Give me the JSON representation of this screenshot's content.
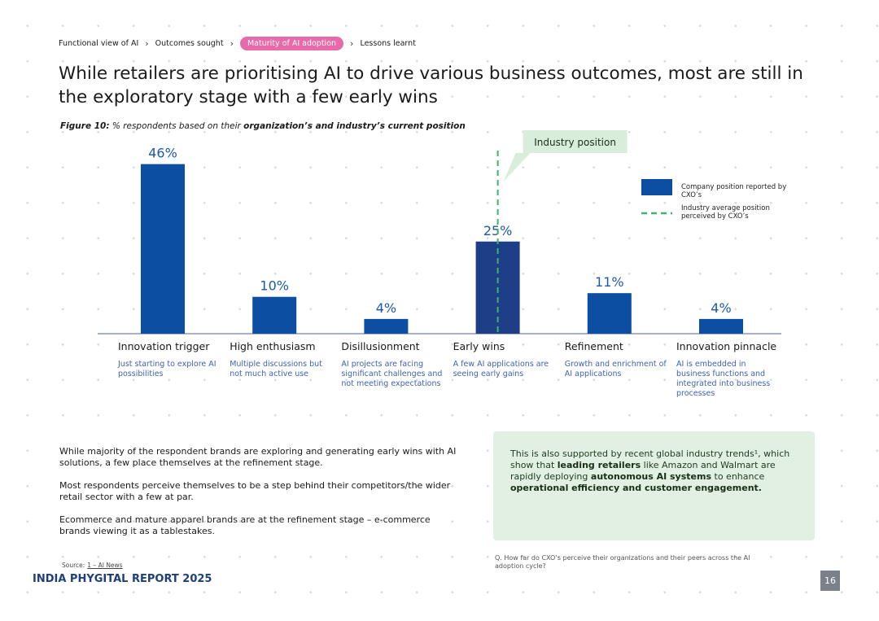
{
  "breadcrumb": [
    "Functional view of AI",
    "Outcomes sought",
    "Maturity of AI adoption",
    "Lessons learnt"
  ],
  "breadcrumb_active": 2,
  "heading": "While retailers are prioritising AI to drive various business outcomes, most are still in the exploratory stage with a few early wins",
  "chart_data": {
    "type": "bar",
    "figure_label": "Figure 10:",
    "title_parts": [
      "% respondents based on their",
      "organization’s and industry’s current position"
    ],
    "categories": [
      "Innovation trigger",
      "High enthusiasm",
      "Disillusionment",
      "Early wins",
      "Refinement",
      "Innovation pinnacle"
    ],
    "descriptions": [
      "Just starting to explore AI possibilities",
      "Multiple discussions but not much active use",
      "AI projects are facing significant challenges and not meeting expectations",
      "A few AI applications are seeing early gains",
      "Growth and enrichment of AI applications",
      "AI is embedded in business functions and integrated into business processes"
    ],
    "values": [
      46,
      10,
      4,
      25,
      11,
      4
    ],
    "value_labels": [
      "46%",
      "10%",
      "4%",
      "25%",
      "11%",
      "4%"
    ],
    "colors": [
      "#0b4ea2",
      "#0b4ea2",
      "#0b4ea2",
      "#1e3f87",
      "#0b4ea2",
      "#0b4ea2"
    ],
    "industry_label": "Industry position",
    "industry_category": "Early wins",
    "industry_color": "#3db56b",
    "legend": [
      "Company position reported by CXO’s",
      "Industry average position perceived by CXO’s"
    ],
    "legend_color": "#0b4ea2"
  },
  "body_paragraphs": [
    "While majority of the respondent brands are exploring and generating early wins with AI solutions, a few place themselves at the refinement stage.",
    "Most respondents perceive themselves to be a step behind their competitors/the wider retail sector with a few at par.",
    "Ecommerce and mature apparel brands are at the refinement stage – e-commerce brands viewing it as a tablestakes."
  ],
  "callout": [
    {
      "text": "This is also supported by recent global industry trends¹, which show that ",
      "bold": false
    },
    {
      "text": "leading retailers",
      "bold": true
    },
    {
      "text": " like Amazon and Walmart are rapidly deploying ",
      "bold": false
    },
    {
      "text": "autonomous AI systems",
      "bold": true
    },
    {
      "text": " to enhance ",
      "bold": false
    },
    {
      "text": "operational efficiency and customer engagement.",
      "bold": true
    }
  ],
  "question": "Q. How far do CXO’s perceive their organizations and their peers across the AI adoption cycle?",
  "source_label": "Source:",
  "source_link": "1 – AI News",
  "footer": "INDIA PHYGITAL REPORT 2025",
  "page_number": 16
}
